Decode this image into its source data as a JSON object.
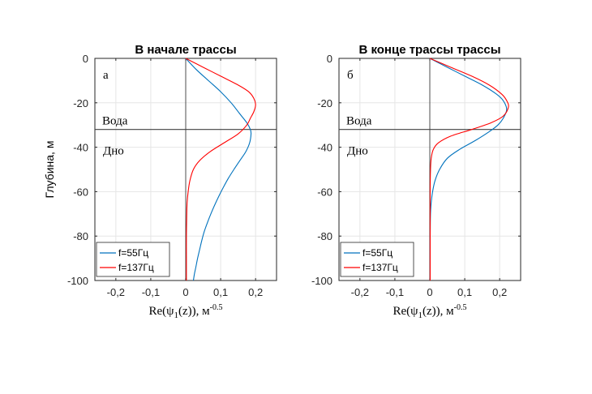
{
  "y_axis_label": "Глубина, м",
  "chart_data": [
    {
      "type": "line",
      "title": "В начале трассы",
      "panel_letter": "а",
      "xlabel": "Re(ψ1(z)), м-0.5",
      "xlabel_parts": {
        "main": "Re(ψ",
        "sub": "1",
        "tail": "(z)), м",
        "sup": "-0.5"
      },
      "ylabel": "Глубина, м",
      "xlim": [
        -0.26,
        0.26
      ],
      "ylim": [
        -100,
        0
      ],
      "xticks": [
        -0.2,
        -0.1,
        0,
        0.1,
        0.2
      ],
      "xtick_labels": [
        "-0,2",
        "-0,1",
        "0",
        "0,1",
        "0,2"
      ],
      "yticks": [
        0,
        -20,
        -40,
        -60,
        -80,
        -100
      ],
      "ytick_labels": [
        "0",
        "-20",
        "-40",
        "-60",
        "-80",
        "-100"
      ],
      "grid": true,
      "legend_position": "bottom-left",
      "horizontal_line": {
        "y": -32,
        "label_above": "Вода",
        "label_below": "Дно"
      },
      "series": [
        {
          "name": "f=55Гц",
          "color": "#0072bd",
          "x": [
            0,
            0.03,
            0.065,
            0.1,
            0.13,
            0.155,
            0.175,
            0.185,
            0.187,
            0.183,
            0.172,
            0.155,
            0.138,
            0.122,
            0.108,
            0.095,
            0.083,
            0.072,
            0.062,
            0.053,
            0.046,
            0.04,
            0.034,
            0.029,
            0.025,
            0.022
          ],
          "y": [
            0,
            -5,
            -10,
            -15,
            -20,
            -25,
            -29,
            -32,
            -34,
            -38,
            -42,
            -46,
            -50,
            -54,
            -58,
            -62,
            -66,
            -70,
            -74,
            -78,
            -82,
            -86,
            -90,
            -94,
            -97,
            -100
          ]
        },
        {
          "name": "f=137Гц",
          "color": "#ff0000",
          "x": [
            0,
            0.05,
            0.1,
            0.15,
            0.18,
            0.195,
            0.2,
            0.195,
            0.185,
            0.175,
            0.15,
            0.11,
            0.07,
            0.04,
            0.022,
            0.012,
            0.007,
            0.004,
            0.003,
            0.002,
            0.002,
            0.002
          ],
          "y": [
            0,
            -4,
            -8,
            -12,
            -15,
            -18,
            -21,
            -24,
            -27,
            -30,
            -34,
            -38,
            -42,
            -46,
            -50,
            -55,
            -60,
            -65,
            -70,
            -80,
            -90,
            -100
          ]
        }
      ]
    },
    {
      "type": "line",
      "title": "В конце трассы трассы",
      "panel_letter": "б",
      "xlabel": "Re(ψ1(z)), м-0.5",
      "xlabel_parts": {
        "main": "Re(ψ",
        "sub": "1",
        "tail": "(z)), м",
        "sup": "-0.5"
      },
      "ylabel": "",
      "xlim": [
        -0.26,
        0.26
      ],
      "ylim": [
        -100,
        0
      ],
      "xticks": [
        -0.2,
        -0.1,
        0,
        0.1,
        0.2
      ],
      "xtick_labels": [
        "-0,2",
        "-0,1",
        "0",
        "0,1",
        "0,2"
      ],
      "yticks": [
        0,
        -20,
        -40,
        -60,
        -80,
        -100
      ],
      "ytick_labels": [
        "0",
        "-20",
        "-40",
        "-60",
        "-80",
        "-100"
      ],
      "grid": true,
      "legend_position": "bottom-left",
      "horizontal_line": {
        "y": -32,
        "label_above": "Вода",
        "label_below": "Дно"
      },
      "series": [
        {
          "name": "f=55Гц",
          "color": "#0072bd",
          "x": [
            0,
            0.05,
            0.1,
            0.15,
            0.19,
            0.21,
            0.22,
            0.21,
            0.195,
            0.17,
            0.13,
            0.085,
            0.05,
            0.028,
            0.015,
            0.008,
            0.004,
            0.002,
            0.001,
            0.001,
            0.001
          ],
          "y": [
            0,
            -4,
            -8,
            -12,
            -16,
            -19,
            -23,
            -27,
            -30,
            -33,
            -37,
            -41,
            -45,
            -50,
            -55,
            -60,
            -65,
            -70,
            -80,
            -90,
            -100
          ]
        },
        {
          "name": "f=137Гц",
          "color": "#ff0000",
          "x": [
            0,
            0.06,
            0.12,
            0.17,
            0.205,
            0.22,
            0.225,
            0.21,
            0.175,
            0.12,
            0.06,
            0.025,
            0.01,
            0.004,
            0.002,
            0.001,
            0.001,
            0.001
          ],
          "y": [
            0,
            -4,
            -8,
            -12,
            -16,
            -19,
            -22,
            -26,
            -29,
            -32,
            -35,
            -38,
            -41,
            -45,
            -50,
            -60,
            -80,
            -100
          ]
        }
      ]
    }
  ]
}
